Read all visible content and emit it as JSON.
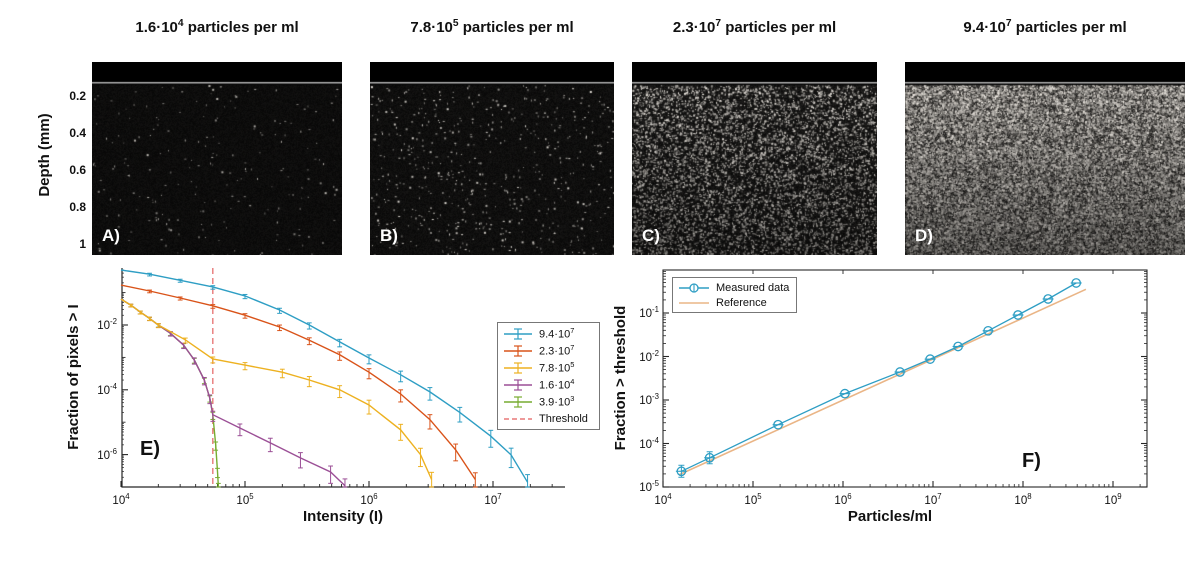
{
  "top_row": {
    "y_axis": {
      "label": "Depth (mm)",
      "ticks": [
        "0.2",
        "0.4",
        "0.6",
        "0.8",
        "1"
      ]
    },
    "panels": [
      {
        "label": "A)",
        "title": "1.6·10^4 particles per ml",
        "speckle_density": 0.005,
        "brightness": 0.75,
        "base_noise": 7,
        "base_var": 12,
        "depth_fade": 0.0
      },
      {
        "label": "B)",
        "title": "7.8·10^5 particles per ml",
        "speckle_density": 0.014,
        "brightness": 0.9,
        "base_noise": 8,
        "base_var": 14,
        "depth_fade": 0.0
      },
      {
        "label": "C)",
        "title": "2.3·10^7 particles per ml",
        "speckle_density": 0.17,
        "brightness": 0.95,
        "base_noise": 10,
        "base_var": 26,
        "depth_fade": 0.35
      },
      {
        "label": "D)",
        "title": "9.4·10^7 particles per ml",
        "speckle_density": 0.4,
        "brightness": 1.0,
        "base_noise": 25,
        "base_var": 80,
        "depth_fade": 0.4
      }
    ]
  },
  "chart_data": [
    {
      "type": "line",
      "panel_label": "E)",
      "xlabel": "Intensity (I)",
      "ylabel": "Fraction of pixels > I",
      "xscale": "log",
      "yscale": "log",
      "xlim": [
        10000,
        40000000
      ],
      "ylim": [
        8e-08,
        0.6
      ],
      "xticks": [
        "10^4",
        "10^5",
        "10^6",
        "10^7"
      ],
      "yticks": [
        "10^-2",
        "10^-4",
        "10^-6"
      ],
      "legend_position": "right-middle",
      "threshold": {
        "label": "Threshold",
        "x": 55000,
        "color": "#e87979",
        "style": "dashed-vertical"
      },
      "series": [
        {
          "name": "9.4·10^7",
          "color": "#2e9ec4",
          "err_max": 15,
          "points": [
            [
              10000,
              0.5
            ],
            [
              17000,
              0.37
            ],
            [
              30000,
              0.24
            ],
            [
              55000,
              0.15
            ],
            [
              100000,
              0.079
            ],
            [
              190000,
              0.029
            ],
            [
              330000,
              0.01
            ],
            [
              580000,
              0.003
            ],
            [
              1000000,
              0.00096
            ],
            [
              1800000,
              0.00029
            ],
            [
              3100000,
              8.6e-05
            ],
            [
              5400000,
              2e-05
            ],
            [
              9600000,
              3.7e-06
            ],
            [
              14000000,
              9.8e-07
            ],
            [
              19000000,
              1.4e-07
            ]
          ]
        },
        {
          "name": "2.3·10^7",
          "color": "#d95319",
          "err_max": 13,
          "points": [
            [
              10000,
              0.17
            ],
            [
              17000,
              0.112
            ],
            [
              30000,
              0.068
            ],
            [
              55000,
              0.039
            ],
            [
              100000,
              0.02
            ],
            [
              190000,
              0.0087
            ],
            [
              330000,
              0.0034
            ],
            [
              580000,
              0.0012
            ],
            [
              1000000,
              0.00035
            ],
            [
              1800000,
              7.4e-05
            ],
            [
              3100000,
              1.2e-05
            ],
            [
              5000000,
              1.4e-06
            ],
            [
              7200000,
              1.7e-07
            ]
          ]
        },
        {
          "name": "7.8·10^5",
          "color": "#edb120",
          "err_max": 14,
          "points": [
            [
              10000,
              0.063
            ],
            [
              12000,
              0.041
            ],
            [
              14300,
              0.025
            ],
            [
              17000,
              0.016
            ],
            [
              20000,
              0.01
            ],
            [
              33000,
              0.0035
            ],
            [
              55000,
              0.00089
            ],
            [
              100000,
              0.00058
            ],
            [
              200000,
              0.00035
            ],
            [
              330000,
              0.0002
            ],
            [
              580000,
              0.0001
            ],
            [
              1000000,
              3.4e-05
            ],
            [
              1800000,
              5.8e-06
            ],
            [
              2600000,
              1e-06
            ],
            [
              3200000,
              1.7e-07
            ]
          ]
        },
        {
          "name": "1.6·10^4",
          "color": "#9b4f96",
          "err_max": 13,
          "points": [
            [
              10000,
              0.063
            ],
            [
              12000,
              0.041
            ],
            [
              14300,
              0.025
            ],
            [
              17000,
              0.016
            ],
            [
              20000,
              0.01
            ],
            [
              25000,
              0.0056
            ],
            [
              32000,
              0.0024
            ],
            [
              39000,
              0.00083
            ],
            [
              47000,
              0.0002
            ],
            [
              52000,
              5.6e-05
            ],
            [
              55000,
              1.7e-05
            ],
            [
              91000,
              6.6e-06
            ],
            [
              160000,
              2.3e-06
            ],
            [
              280000,
              7.9e-07
            ],
            [
              490000,
              2.9e-07
            ],
            [
              640000,
              1.1e-07
            ]
          ]
        },
        {
          "name": "3.9·10^3",
          "color": "#77ac30",
          "err_max": 6,
          "points": [
            [
              10000,
              0.063
            ],
            [
              12000,
              0.041
            ],
            [
              14300,
              0.025
            ],
            [
              17000,
              0.016
            ],
            [
              20000,
              0.01
            ],
            [
              25000,
              0.0056
            ],
            [
              32000,
              0.0024
            ],
            [
              39000,
              0.00083
            ],
            [
              47000,
              0.0002
            ],
            [
              52000,
              5.6e-05
            ],
            [
              55000,
              1.7e-05
            ],
            [
              58000,
              2e-06
            ],
            [
              60000,
              3e-07
            ],
            [
              61000,
              1e-07
            ]
          ]
        }
      ]
    },
    {
      "type": "scatter",
      "panel_label": "F)",
      "xlabel": "Particles/ml",
      "ylabel": "Fraction > threshold",
      "xscale": "log",
      "yscale": "log",
      "xlim": [
        10000,
        1000000000
      ],
      "ylim": [
        1e-05,
        1
      ],
      "xticks": [
        "10^4",
        "10^5",
        "10^6",
        "10^7",
        "10^8",
        "10^9"
      ],
      "yticks": [
        "10^-1",
        "10^-2",
        "10^-3",
        "10^-4",
        "10^-5"
      ],
      "legend_position": "top-left",
      "series": [
        {
          "name": "Measured data",
          "color": "#2e9ec4",
          "marker": "circle-plus",
          "points": [
            [
              16000,
              2.3e-05
            ],
            [
              33000,
              4.7e-05
            ],
            [
              190000,
              0.00027
            ],
            [
              1050000,
              0.0014
            ],
            [
              4300000,
              0.0044
            ],
            [
              9300000,
              0.0087
            ],
            [
              19000000,
              0.017
            ],
            [
              41000000,
              0.039
            ],
            [
              88000000,
              0.09
            ],
            [
              190000000,
              0.21
            ],
            [
              390000000,
              0.49
            ]
          ]
        },
        {
          "name": "Reference",
          "color": "#eab586",
          "marker": "none",
          "points": [
            [
              15000,
              1.9e-05
            ],
            [
              500000000,
              0.35
            ]
          ]
        }
      ]
    }
  ]
}
